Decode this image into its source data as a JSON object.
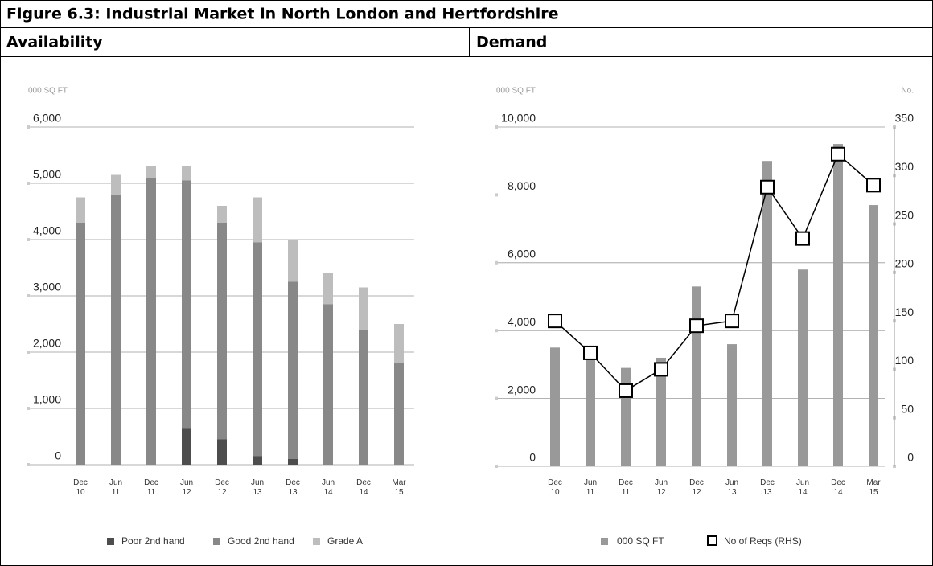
{
  "title": "Figure 6.3: Industrial Market in North London and Hertfordshire",
  "headers": [
    "Availability",
    "Demand"
  ],
  "chart_data": [
    {
      "type": "stacked_bar",
      "y_label": "000 SQ FT",
      "categories": [
        "Dec 10",
        "Jun 11",
        "Dec 11",
        "Jun 12",
        "Dec 12",
        "Jun 13",
        "Dec 13",
        "Jun 14",
        "Dec 14",
        "Mar 15"
      ],
      "series": [
        {
          "name": "Poor 2nd hand",
          "color": "#4d4d4d",
          "values": [
            0,
            0,
            0,
            650,
            450,
            150,
            100,
            0,
            0,
            0
          ]
        },
        {
          "name": "Good 2nd hand",
          "color": "#888888",
          "values": [
            4300,
            4800,
            5100,
            4400,
            3850,
            3800,
            3150,
            2850,
            2400,
            1800
          ]
        },
        {
          "name": "Grade A",
          "color": "#bdbdbd",
          "values": [
            450,
            350,
            200,
            250,
            300,
            800,
            750,
            550,
            750,
            700
          ]
        }
      ],
      "ylim": [
        0,
        6000
      ],
      "yticks": [
        0,
        {
          "value": 1000,
          "label": "1,000"
        },
        {
          "value": 2000,
          "label": "2,000"
        },
        {
          "value": 3000,
          "label": "3,000"
        },
        {
          "value": 4000,
          "label": "4,000"
        },
        {
          "value": 5000,
          "label": "5,000"
        },
        {
          "value": 6000,
          "label": "6,000"
        }
      ],
      "grid": true
    },
    {
      "type": "bar_line",
      "y_label": "000 SQ FT",
      "y2_label": "No.",
      "categories": [
        "Dec 10",
        "Jun 11",
        "Dec 11",
        "Jun 12",
        "Dec 12",
        "Jun 13",
        "Dec 13",
        "Jun 14",
        "Dec 14",
        "Mar 15"
      ],
      "series": [
        {
          "name": "000 SQ FT",
          "color": "#999999",
          "values": [
            3500,
            3200,
            2900,
            3200,
            5300,
            3600,
            9000,
            5800,
            9500,
            7700
          ]
        },
        {
          "name": "No of Reqs (RHS)",
          "color": "#000000",
          "axis": "y2",
          "values": [
            150,
            117,
            78,
            100,
            145,
            150,
            288,
            235,
            322,
            290
          ]
        }
      ],
      "ylim": [
        0,
        10000
      ],
      "yticks": [
        0,
        {
          "value": 2000,
          "label": "2,000"
        },
        {
          "value": 4000,
          "label": "4,000"
        },
        {
          "value": 6000,
          "label": "6,000"
        },
        {
          "value": 8000,
          "label": "8,000"
        },
        {
          "value": 10000,
          "label": "10,000"
        }
      ],
      "y2lim": [
        0,
        350
      ],
      "y2ticks": [
        0,
        50,
        100,
        150,
        200,
        250,
        300,
        350
      ],
      "grid": true
    }
  ]
}
